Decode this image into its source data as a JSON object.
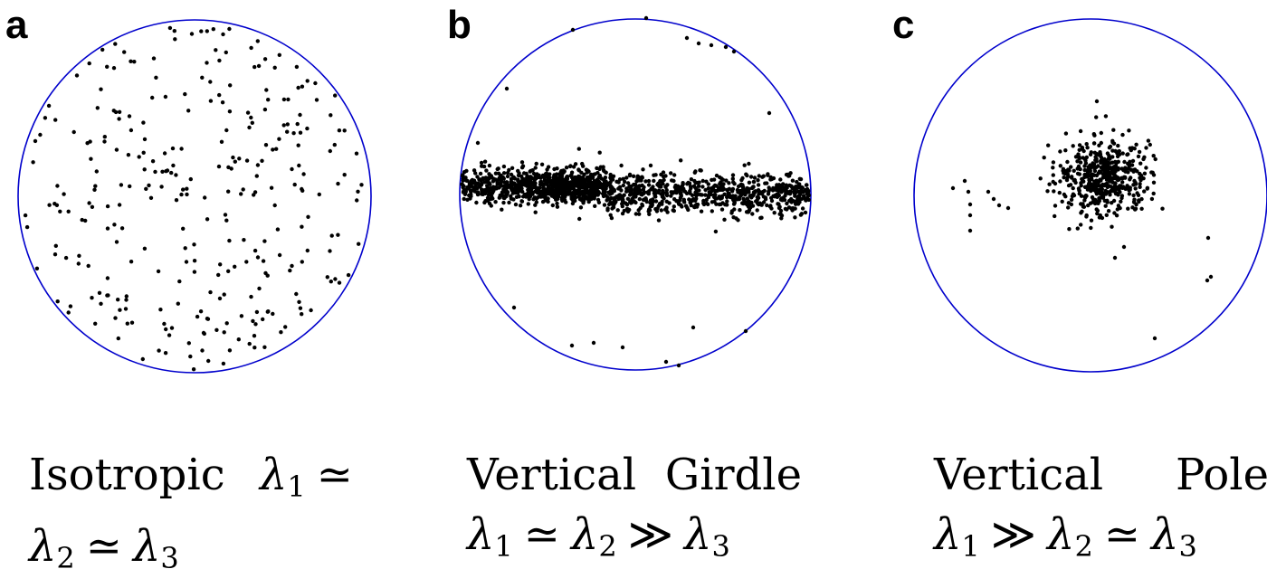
{
  "colors": {
    "circle": "#0000cc",
    "points": "#000000",
    "background": "#ffffff"
  },
  "panels": [
    {
      "letter": "a",
      "caption_line1_word": "Isotropic",
      "caption_line1_math": "λ1 ≃",
      "caption_line2_math": "λ2 ≃ λ3",
      "distribution": "isotropic"
    },
    {
      "letter": "b",
      "caption_line1_word1": "Vertical",
      "caption_line1_word2": "Girdle",
      "caption_line2_math": "λ1 ≃ λ2 ≫ λ3",
      "distribution": "girdle"
    },
    {
      "letter": "c",
      "caption_line1_word1": "Vertical",
      "caption_line1_word2": "Pole",
      "caption_line2_math": "λ1 ≫ λ2 ≃ λ3",
      "distribution": "pole"
    }
  ]
}
